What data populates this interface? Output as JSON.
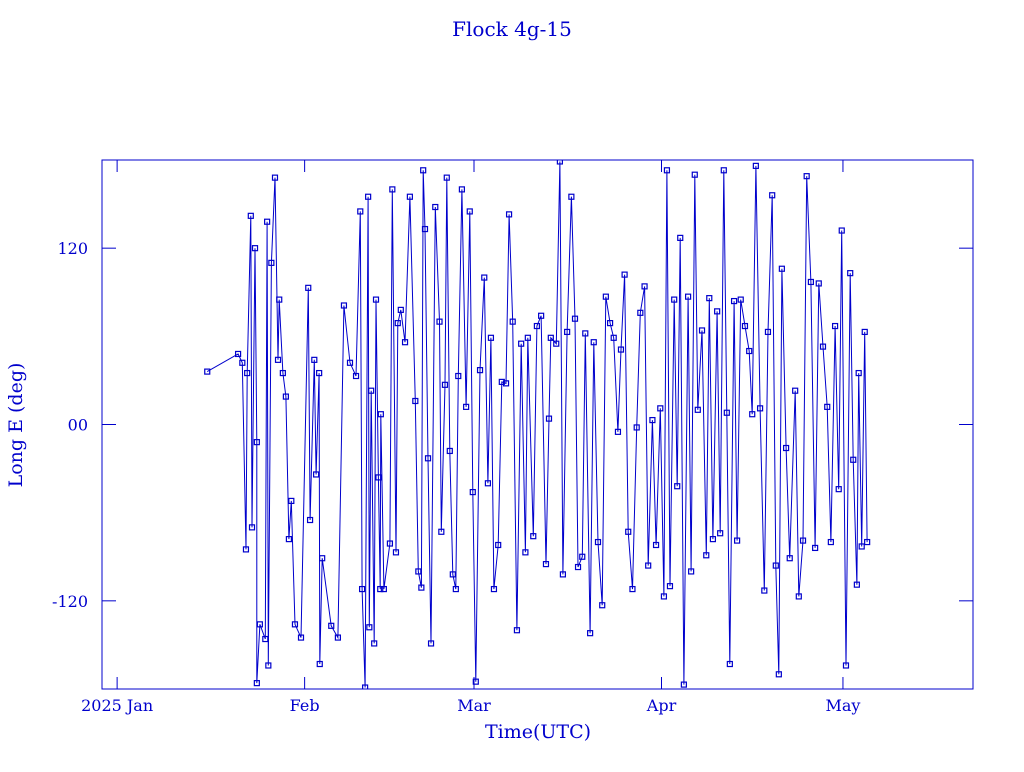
{
  "chart_data": {
    "type": "line",
    "title": "Flock 4g-15",
    "xlabel": "Time(UTC)",
    "ylabel": "Long E (deg)",
    "color": "#0000cc",
    "xlim": [
      -2.5,
      141.5
    ],
    "xticks": [
      {
        "value": 0,
        "label": "2025 Jan"
      },
      {
        "value": 31,
        "label": "Feb"
      },
      {
        "value": 59,
        "label": "Mar"
      },
      {
        "value": 90,
        "label": "Apr"
      },
      {
        "value": 120,
        "label": "May"
      }
    ],
    "ylim": [
      -180,
      180
    ],
    "yticks": [
      -120,
      {
        "value": 0,
        "label": "00"
      },
      120
    ],
    "x": [
      14.9,
      20.0,
      20.7,
      21.3,
      21.5,
      22.1,
      22.3,
      22.8,
      23.1,
      23.1,
      23.6,
      24.5,
      24.8,
      25.0,
      25.5,
      26.1,
      26.6,
      26.8,
      27.4,
      27.9,
      28.4,
      28.8,
      29.4,
      30.4,
      31.6,
      31.9,
      32.6,
      32.9,
      33.4,
      33.5,
      33.9,
      35.4,
      36.5,
      37.5,
      38.5,
      39.5,
      40.2,
      40.5,
      41.0,
      41.5,
      41.7,
      42.0,
      42.5,
      42.8,
      43.2,
      43.5,
      43.6,
      44.1,
      45.1,
      45.5,
      46.1,
      46.4,
      46.9,
      47.6,
      48.4,
      49.3,
      49.8,
      50.3,
      50.6,
      50.9,
      51.4,
      51.9,
      52.6,
      53.3,
      53.6,
      54.2,
      54.5,
      55.0,
      55.5,
      56.0,
      56.4,
      57.0,
      57.7,
      58.3,
      58.8,
      59.3,
      60.0,
      60.7,
      61.3,
      61.8,
      62.3,
      63.0,
      63.6,
      64.3,
      64.8,
      65.4,
      66.1,
      66.8,
      67.5,
      67.9,
      68.8,
      69.4,
      70.1,
      70.9,
      71.4,
      71.7,
      72.6,
      73.2,
      73.7,
      74.4,
      75.1,
      75.7,
      76.2,
      76.9,
      77.4,
      78.2,
      78.8,
      79.5,
      80.2,
      80.8,
      81.5,
      82.1,
      82.8,
      83.3,
      83.9,
      84.5,
      85.2,
      85.9,
      86.5,
      87.2,
      87.8,
      88.5,
      89.1,
      89.8,
      90.4,
      90.9,
      91.4,
      92.1,
      92.6,
      93.1,
      93.7,
      94.4,
      94.9,
      95.5,
      96.0,
      96.7,
      97.4,
      97.9,
      98.5,
      99.2,
      99.7,
      100.3,
      100.8,
      101.3,
      102.0,
      102.5,
      103.1,
      103.8,
      104.5,
      105.0,
      105.6,
      106.3,
      107.0,
      107.6,
      108.3,
      108.9,
      109.4,
      109.9,
      110.6,
      111.2,
      112.1,
      112.7,
      113.4,
      114.0,
      114.7,
      115.4,
      116.0,
      116.7,
      117.4,
      118.0,
      118.7,
      119.3,
      119.8,
      120.5,
      121.2,
      121.7,
      122.3,
      122.6,
      123.1,
      123.6,
      124.0
    ],
    "values": [
      36,
      48,
      42,
      -85,
      35,
      142,
      -70,
      120,
      -12,
      -176,
      -136,
      -146,
      138,
      -164,
      110,
      168,
      44,
      85,
      35,
      19,
      -78,
      -52,
      -136,
      -145,
      93,
      -65,
      44,
      -34,
      35,
      -163,
      -91,
      -137,
      -145,
      81,
      42,
      33,
      145,
      -112,
      -179,
      155,
      -138,
      23,
      -149,
      85,
      -36,
      -112,
      7,
      -112,
      -81,
      160,
      -87,
      69,
      78,
      56,
      155,
      16,
      -100,
      -111,
      173,
      133,
      -23,
      -149,
      148,
      70,
      -73,
      27,
      168,
      -18,
      -102,
      -112,
      33,
      160,
      12,
      145,
      -46,
      -175,
      37,
      100,
      -40,
      59,
      -112,
      -82,
      29,
      28,
      143,
      70,
      -140,
      55,
      -87,
      59,
      -76,
      67,
      74,
      -95,
      4,
      59,
      55,
      179,
      -102,
      63,
      155,
      72,
      -97,
      -90,
      62,
      -142,
      56,
      -80,
      -123,
      87,
      69,
      59,
      -5,
      51,
      102,
      -73,
      -112,
      -2,
      76,
      94,
      -96,
      3,
      -82,
      11,
      -117,
      173,
      -110,
      85,
      -42,
      127,
      -177,
      87,
      -100,
      170,
      10,
      64,
      -89,
      86,
      -78,
      77,
      -74,
      173,
      8,
      -163,
      84,
      -79,
      85,
      67,
      50,
      7,
      176,
      11,
      -113,
      63,
      156,
      -96,
      -170,
      106,
      -16,
      -91,
      23,
      -117,
      -79,
      169,
      97,
      -84,
      96,
      53,
      12,
      -80,
      67,
      -44,
      132,
      -164,
      103,
      -24,
      -109,
      35,
      -83,
      63,
      -80
    ]
  }
}
